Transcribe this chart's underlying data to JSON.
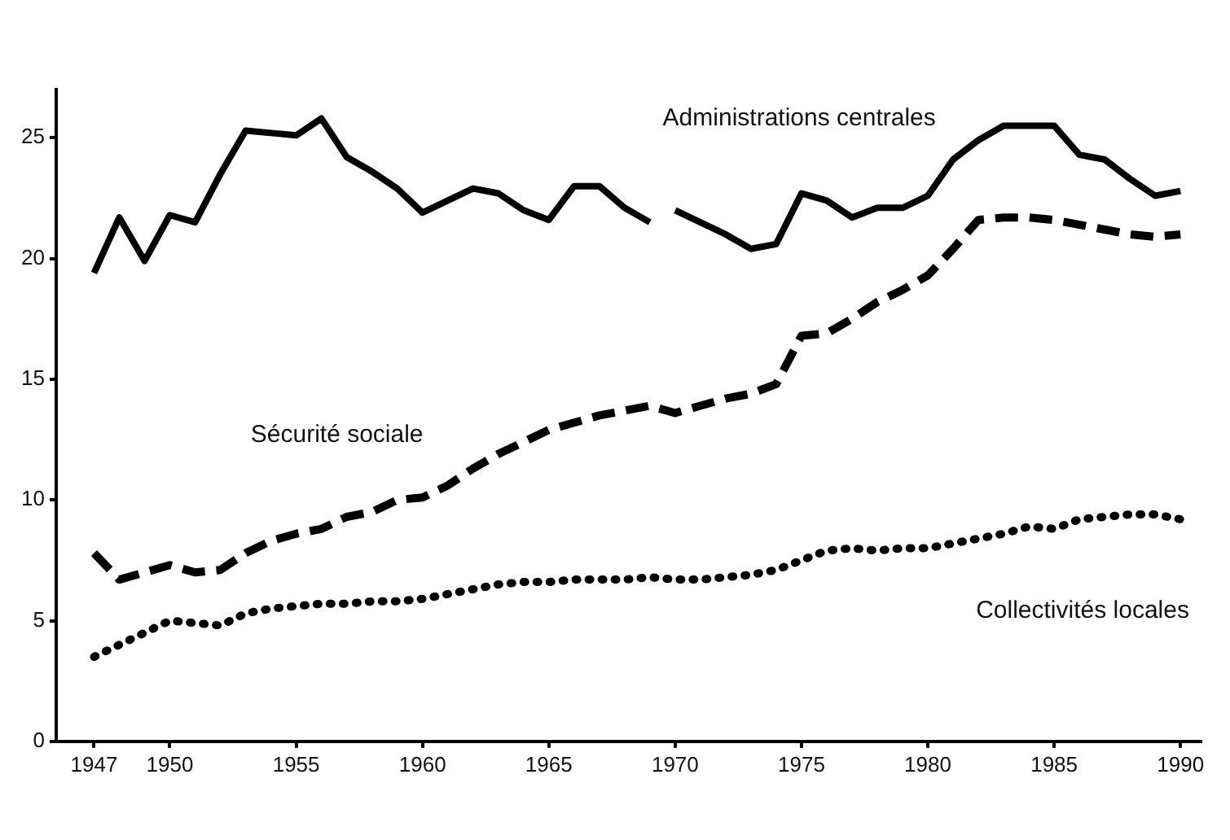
{
  "chart_data": {
    "type": "line",
    "xlim": [
      1945.5,
      1990.8
    ],
    "xticks": [
      1947,
      1950,
      1955,
      1960,
      1965,
      1970,
      1975,
      1980,
      1985,
      1990
    ],
    "ylim": [
      0,
      27
    ],
    "yticks": [
      0,
      5,
      10,
      15,
      20,
      25
    ],
    "grid": false,
    "legend": false,
    "marker": "none",
    "series": [
      {
        "name": "Administrations centrales",
        "color": "#000000",
        "line_style": "solid",
        "x": [
          1947,
          1948,
          1949,
          1950,
          1951,
          1952,
          1953,
          1954,
          1955,
          1956,
          1957,
          1958,
          1959,
          1960,
          1961,
          1962,
          1963,
          1964,
          1965,
          1966,
          1967,
          1968,
          1969,
          1969.5,
          1970,
          1971,
          1972,
          1973,
          1974,
          1975,
          1976,
          1977,
          1978,
          1979,
          1980,
          1981,
          1982,
          1983,
          1984,
          1985,
          1986,
          1987,
          1988,
          1989,
          1990
        ],
        "values": [
          19.4,
          21.7,
          19.9,
          21.8,
          21.5,
          23.5,
          25.3,
          25.2,
          25.1,
          25.8,
          24.2,
          23.6,
          22.9,
          21.9,
          22.4,
          22.9,
          22.7,
          22.0,
          21.6,
          23.0,
          23.0,
          22.1,
          21.5,
          null,
          22.0,
          21.5,
          21.0,
          20.4,
          20.6,
          22.7,
          22.4,
          21.7,
          22.1,
          22.1,
          22.6,
          24.1,
          24.9,
          25.5,
          25.5,
          25.5,
          24.3,
          24.1,
          23.3,
          22.6,
          22.8
        ]
      },
      {
        "name": "Sécurité sociale",
        "color": "#000000",
        "line_style": "dashed",
        "x": [
          1947,
          1948,
          1949,
          1950,
          1951,
          1952,
          1953,
          1954,
          1955,
          1956,
          1957,
          1958,
          1959,
          1960,
          1961,
          1962,
          1963,
          1964,
          1965,
          1966,
          1967,
          1968,
          1969,
          1970,
          1971,
          1972,
          1973,
          1974,
          1975,
          1976,
          1977,
          1978,
          1979,
          1980,
          1981,
          1982,
          1983,
          1984,
          1985,
          1986,
          1987,
          1988,
          1989,
          1990
        ],
        "values": [
          7.8,
          6.7,
          7.0,
          7.3,
          7.0,
          7.1,
          7.8,
          8.3,
          8.6,
          8.8,
          9.3,
          9.5,
          10.0,
          10.1,
          10.6,
          11.3,
          11.9,
          12.4,
          12.9,
          13.2,
          13.5,
          13.7,
          13.9,
          13.6,
          13.9,
          14.2,
          14.4,
          14.8,
          16.8,
          16.9,
          17.5,
          18.2,
          18.7,
          19.3,
          20.4,
          21.6,
          21.7,
          21.7,
          21.6,
          21.4,
          21.2,
          21.0,
          20.9,
          21.0
        ]
      },
      {
        "name": "Collectivités locales",
        "color": "#000000",
        "line_style": "dotted",
        "x": [
          1947,
          1948,
          1949,
          1950,
          1951,
          1952,
          1953,
          1954,
          1955,
          1956,
          1957,
          1958,
          1959,
          1960,
          1961,
          1962,
          1963,
          1964,
          1965,
          1966,
          1967,
          1968,
          1969,
          1970,
          1971,
          1972,
          1973,
          1974,
          1975,
          1976,
          1977,
          1978,
          1979,
          1980,
          1981,
          1982,
          1983,
          1984,
          1985,
          1986,
          1987,
          1988,
          1989,
          1990
        ],
        "values": [
          3.5,
          4.0,
          4.5,
          5.0,
          4.9,
          4.8,
          5.3,
          5.5,
          5.6,
          5.7,
          5.7,
          5.8,
          5.8,
          5.9,
          6.1,
          6.3,
          6.5,
          6.6,
          6.6,
          6.7,
          6.7,
          6.7,
          6.8,
          6.7,
          6.7,
          6.8,
          6.9,
          7.1,
          7.5,
          7.9,
          8.0,
          7.9,
          8.0,
          8.0,
          8.2,
          8.4,
          8.6,
          8.9,
          8.8,
          9.2,
          9.3,
          9.4,
          9.4,
          9.2
        ]
      }
    ]
  }
}
